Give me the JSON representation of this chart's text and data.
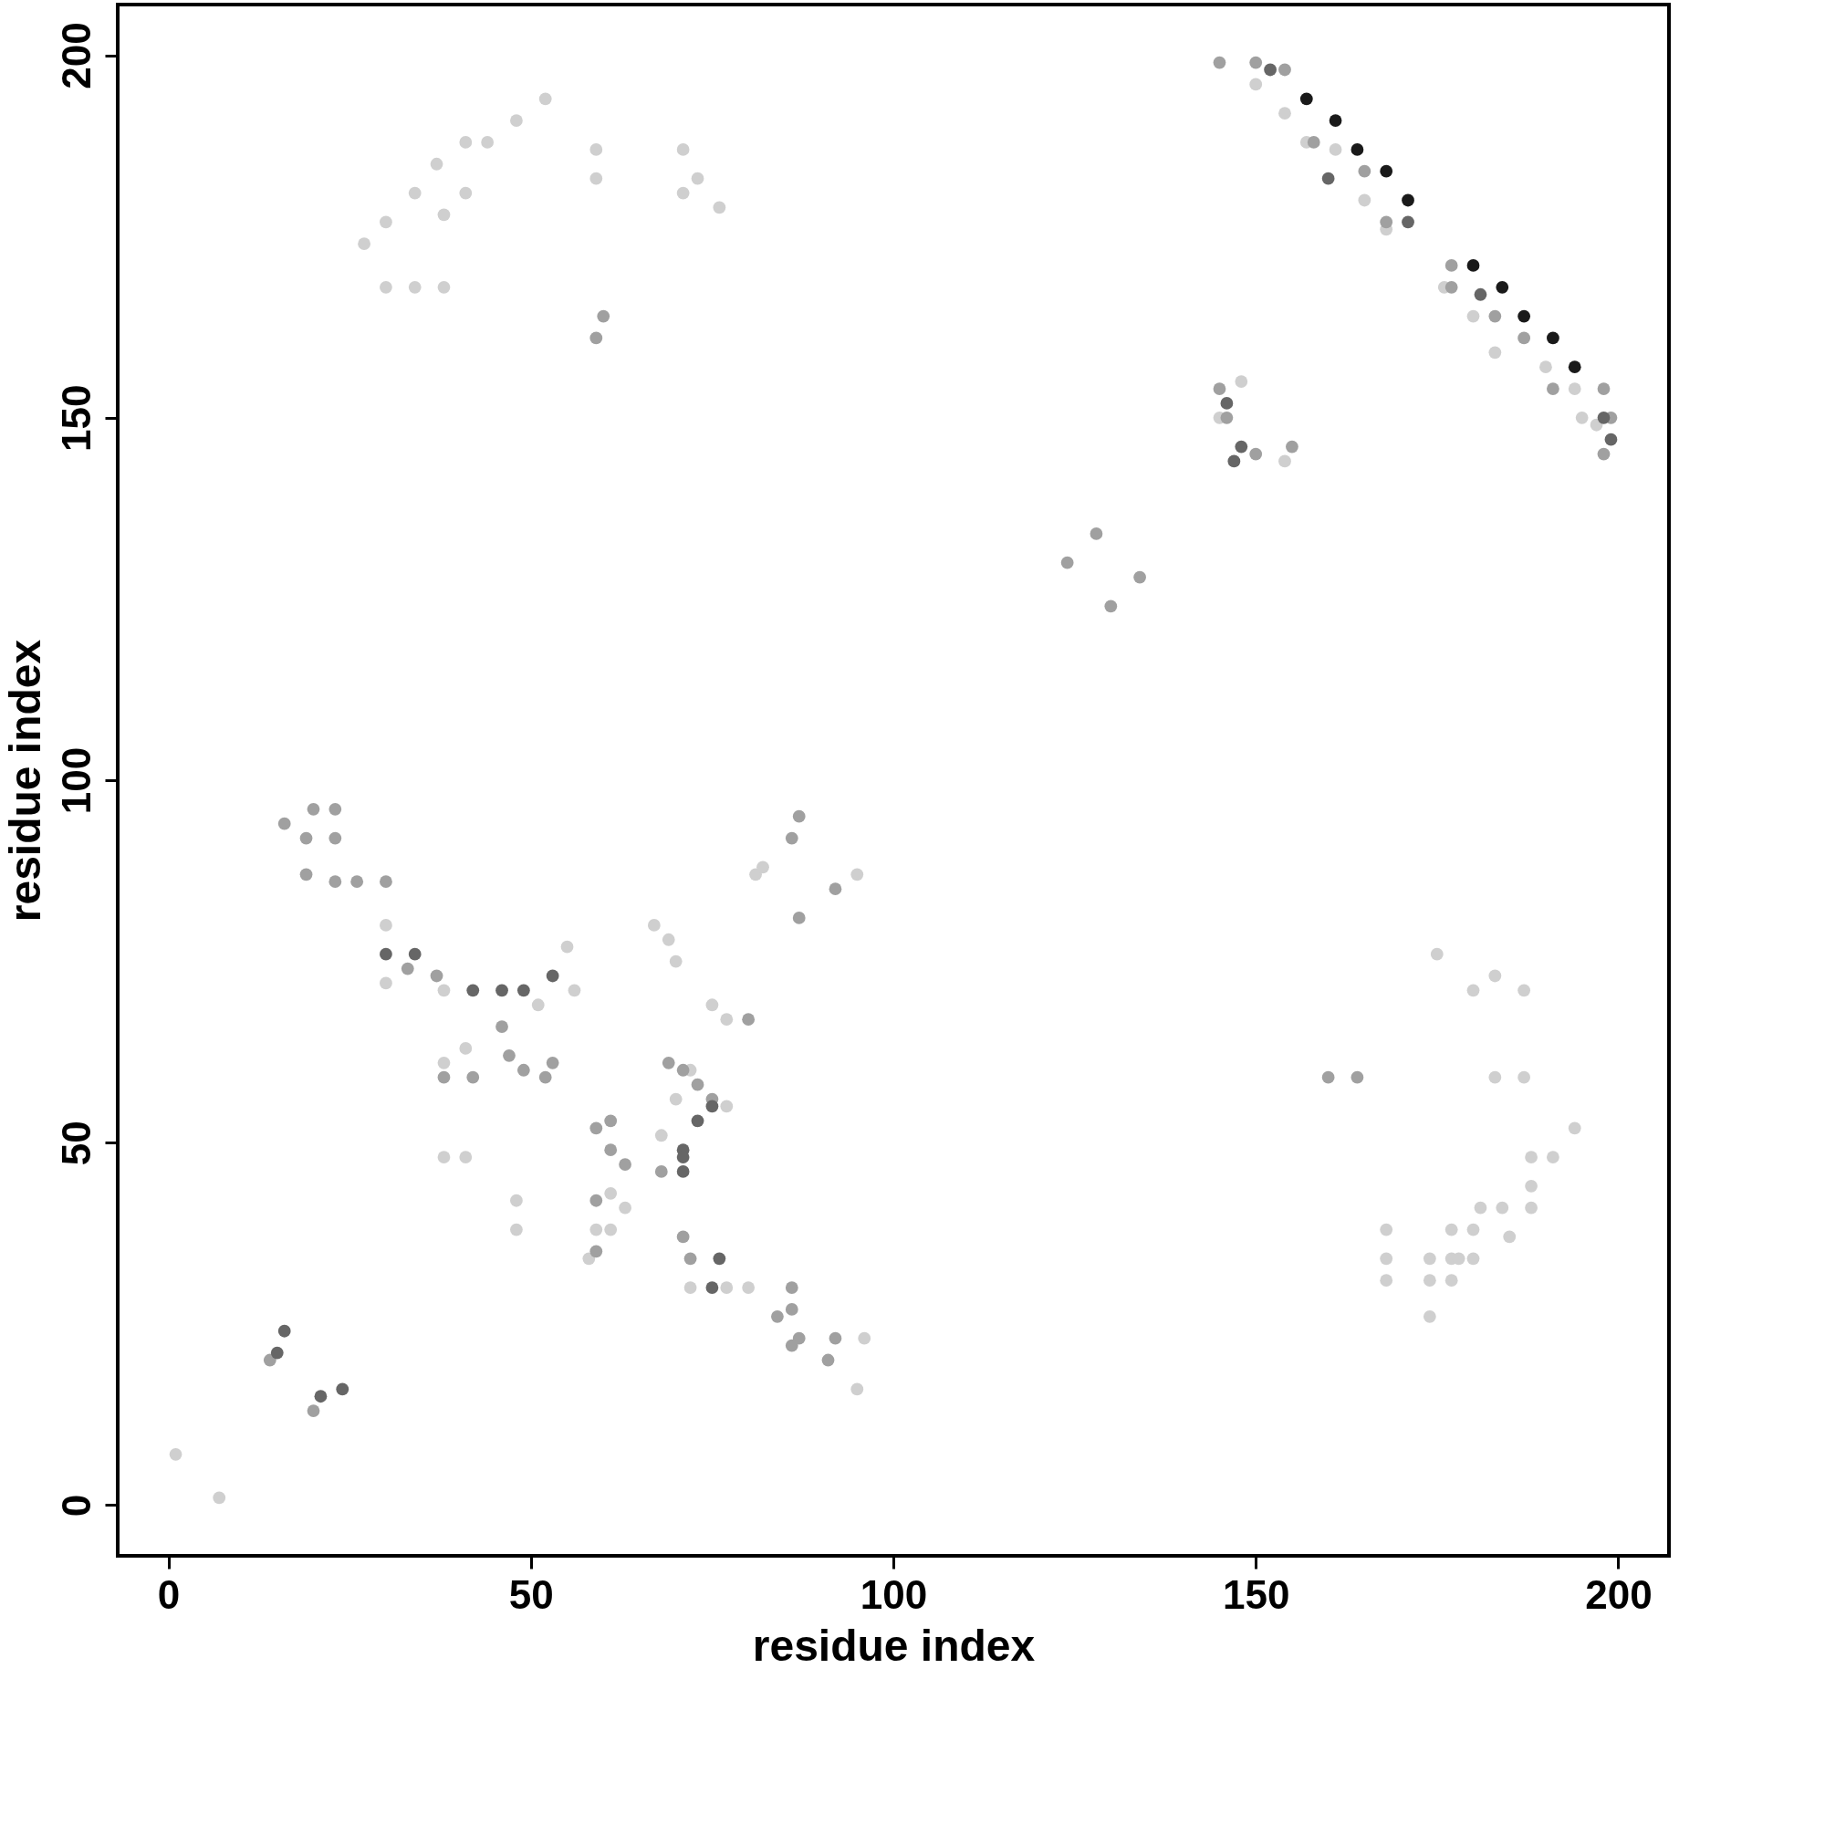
{
  "chart_data": {
    "type": "scatter",
    "xlabel": "residue index",
    "ylabel": "residue index",
    "xlim": [
      -7,
      207
    ],
    "ylim": [
      -7,
      207
    ],
    "xticks": [
      0,
      50,
      100,
      150,
      200
    ],
    "yticks": [
      0,
      50,
      100,
      150,
      200
    ],
    "grid": false,
    "marker": "circle",
    "series": [
      {
        "color": "#cfcfcf",
        "x": [
          1,
          7,
          38,
          41,
          30,
          30,
          38,
          41,
          38,
          48,
          48,
          55,
          56,
          51,
          67,
          69,
          70,
          75,
          77,
          77,
          72,
          80,
          61,
          61,
          63,
          58,
          59,
          68,
          70,
          72,
          27,
          30,
          30,
          34,
          38,
          34,
          37,
          41,
          44,
          48,
          52,
          59,
          59,
          71,
          71,
          73,
          76,
          38,
          41,
          145,
          148,
          154,
          150,
          154,
          157,
          161,
          165,
          168,
          176,
          180,
          183,
          190,
          194,
          195,
          197,
          175,
          180,
          183,
          187,
          183,
          187,
          194,
          188,
          191,
          188,
          188,
          184,
          185,
          181,
          180,
          177,
          177,
          174,
          174,
          174,
          168,
          168,
          168,
          177,
          178,
          180,
          77,
          96,
          95,
          95,
          81,
          82
        ],
        "values": [
          7,
          1,
          48,
          48,
          80,
          72,
          71,
          63,
          61,
          42,
          38,
          77,
          71,
          69,
          80,
          78,
          75,
          69,
          67,
          55,
          30,
          30,
          43,
          38,
          41,
          34,
          38,
          51,
          56,
          60,
          174,
          177,
          168,
          168,
          168,
          181,
          185,
          188,
          188,
          191,
          194,
          187,
          183,
          187,
          181,
          183,
          179,
          178,
          181,
          150,
          155,
          144,
          196,
          192,
          188,
          187,
          180,
          176,
          168,
          164,
          159,
          157,
          154,
          150,
          149,
          76,
          71,
          73,
          71,
          59,
          59,
          52,
          48,
          48,
          44,
          41,
          41,
          37,
          41,
          38,
          38,
          34,
          34,
          31,
          26,
          38,
          34,
          31,
          31,
          34,
          34,
          30,
          23,
          16,
          87,
          87,
          88
        ]
      },
      {
        "color": "#a0a0a0",
        "x": [
          20,
          14,
          16,
          20,
          23,
          19,
          23,
          19,
          23,
          26,
          30,
          33,
          37,
          38,
          42,
          47,
          49,
          52,
          53,
          46,
          59,
          61,
          63,
          61,
          59,
          59,
          69,
          71,
          73,
          75,
          68,
          71,
          72,
          80,
          86,
          86,
          84,
          87,
          92,
          91,
          86,
          86,
          87,
          92,
          87,
          60,
          59,
          145,
          146,
          150,
          155,
          124,
          128,
          130,
          134,
          160,
          164,
          145,
          150,
          154,
          158,
          165,
          168,
          177,
          177,
          183,
          187,
          191,
          198,
          199,
          198
        ],
        "values": [
          13,
          20,
          94,
          96,
          96,
          92,
          92,
          87,
          86,
          86,
          86,
          74,
          73,
          59,
          59,
          62,
          60,
          59,
          61,
          66,
          52,
          49,
          47,
          53,
          42,
          35,
          61,
          60,
          58,
          56,
          46,
          37,
          34,
          67,
          30,
          27,
          26,
          23,
          23,
          20,
          22,
          92,
          95,
          85,
          81,
          164,
          161,
          154,
          150,
          145,
          146,
          130,
          134,
          124,
          128,
          59,
          59,
          199,
          199,
          198,
          188,
          184,
          177,
          171,
          168,
          164,
          161,
          154,
          154,
          150,
          145
        ]
      },
      {
        "color": "#666666",
        "x": [
          16,
          24,
          21,
          15,
          30,
          34,
          53,
          42,
          46,
          49,
          71,
          71,
          73,
          75,
          76,
          75,
          71,
          147,
          148,
          146,
          152,
          160,
          171,
          181,
          199,
          198
        ],
        "values": [
          24,
          16,
          15,
          21,
          76,
          76,
          73,
          71,
          71,
          71,
          49,
          46,
          53,
          55,
          34,
          30,
          48,
          144,
          146,
          152,
          198,
          183,
          177,
          167,
          147,
          150
        ]
      },
      {
        "color": "#1a1a1a",
        "x": [
          157,
          161,
          164,
          168,
          171,
          180,
          184,
          187,
          191,
          194
        ],
        "values": [
          194,
          191,
          187,
          184,
          180,
          171,
          168,
          164,
          161,
          157
        ]
      }
    ]
  }
}
